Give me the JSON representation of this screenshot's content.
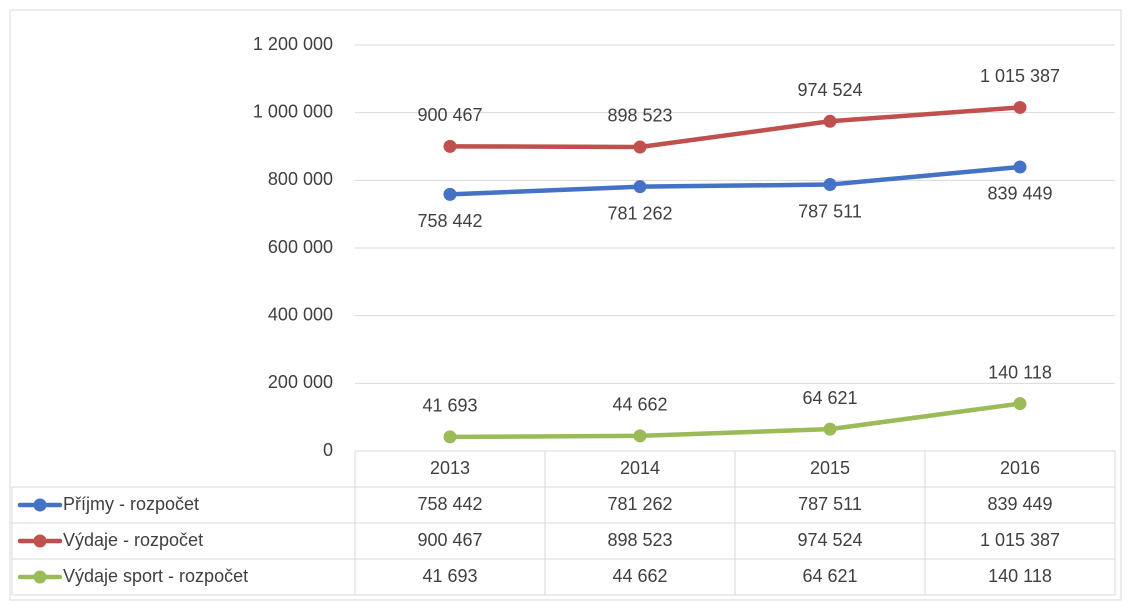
{
  "chart_data": {
    "type": "line",
    "categories": [
      "2013",
      "2014",
      "2015",
      "2016"
    ],
    "series": [
      {
        "name": "Příjmy - rozpočet",
        "color": "#4472c4",
        "values": [
          758442,
          781262,
          787511,
          839449
        ],
        "value_labels": [
          "758 442",
          "781 262",
          "787 511",
          "839 449"
        ]
      },
      {
        "name": "Výdaje - rozpočet",
        "color": "#c0504d",
        "values": [
          900467,
          898523,
          974524,
          1015387
        ],
        "value_labels": [
          "900 467",
          "898 523",
          "974 524",
          "1 015 387"
        ]
      },
      {
        "name": "Výdaje sport - rozpočet",
        "color": "#9bbb59",
        "values": [
          41693,
          44662,
          64621,
          140118
        ],
        "value_labels": [
          "41 693",
          "44 662",
          "64 621",
          "140 118"
        ]
      }
    ],
    "ylim": [
      0,
      1200000
    ],
    "yticks": [
      0,
      {
        "value": 200000,
        "label": "200 000"
      },
      {
        "value": 400000,
        "label": "400 000"
      },
      {
        "value": 600000,
        "label": "600 000"
      },
      {
        "value": 800000,
        "label": "800 000"
      },
      {
        "value": 1000000,
        "label": "1 000 000"
      },
      {
        "value": 1200000,
        "label": "1 200 000"
      }
    ],
    "grid": true,
    "data_table": true
  }
}
